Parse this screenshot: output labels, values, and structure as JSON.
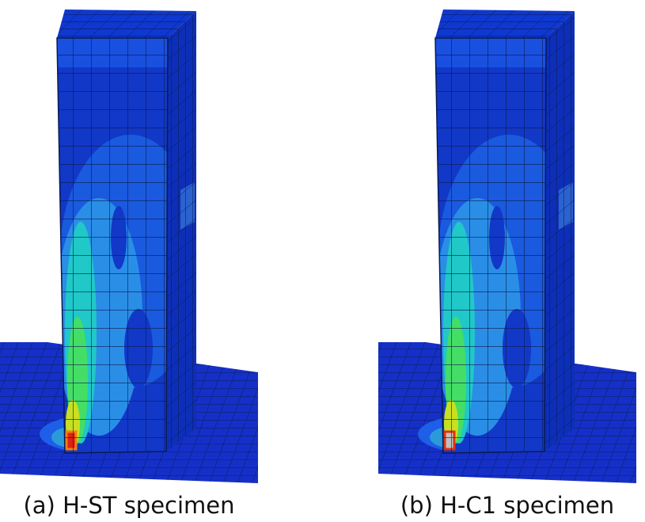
{
  "panels": [
    {
      "caption": "(a) H-ST specimen"
    },
    {
      "caption": "(b) H-C1 specimen"
    }
  ]
}
